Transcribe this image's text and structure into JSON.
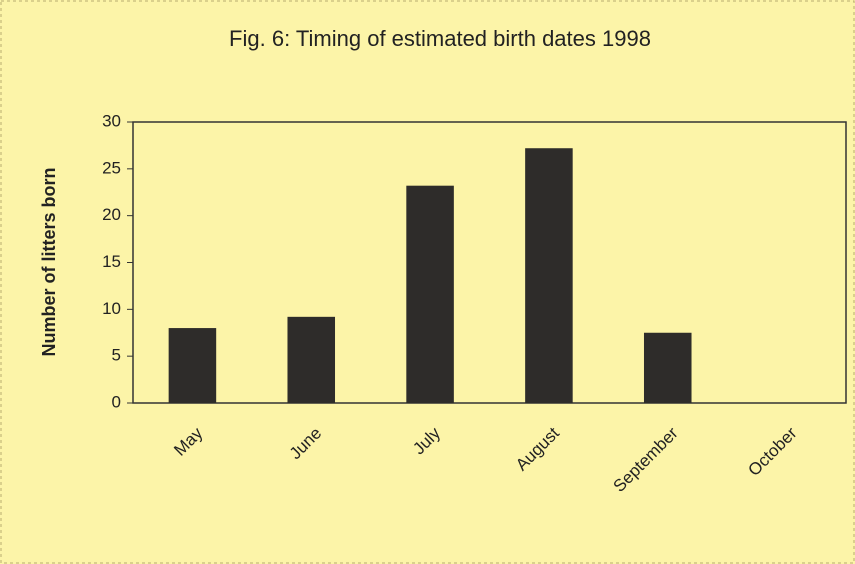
{
  "chart_data": {
    "type": "bar",
    "title": "Fig. 6: Timing of estimated birth dates 1998",
    "y_label": "Number of litters born",
    "categories": [
      "May",
      "June",
      "July",
      "August",
      "September",
      "October"
    ],
    "values": [
      8,
      9.2,
      23.2,
      27.2,
      7.5,
      0
    ],
    "color": "#2e2c2a",
    "ylim": [
      0,
      30
    ],
    "yticks": [
      0,
      5,
      10,
      15,
      20,
      25,
      30
    ],
    "grid": false
  }
}
